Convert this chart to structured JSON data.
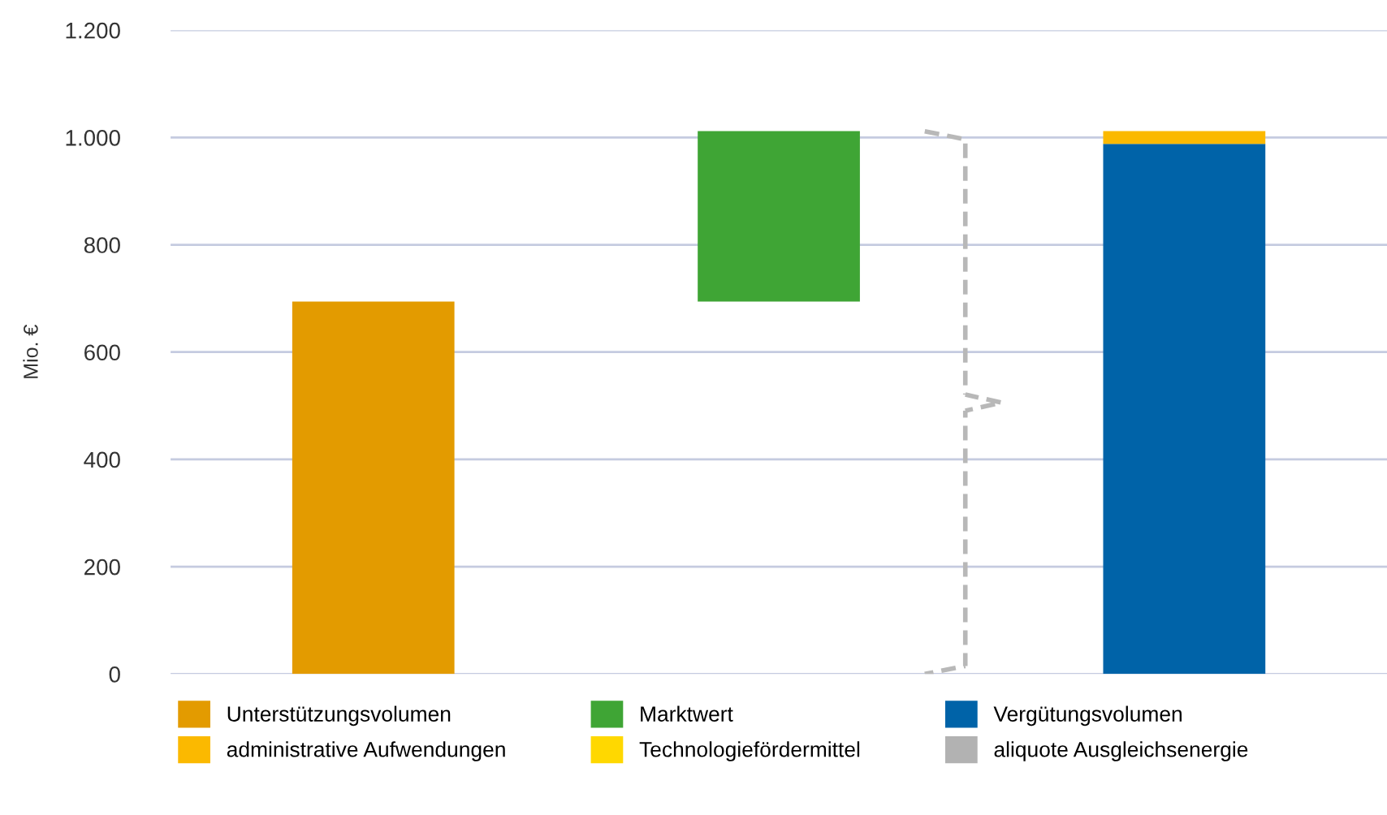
{
  "chart_data": {
    "type": "bar",
    "ylabel": "Mio. €",
    "categories": [
      null,
      null,
      null
    ],
    "stacked": true,
    "series": [
      {
        "name": "Unterstützungsvolumen",
        "color": "#e39b00",
        "values": [
          694,
          null,
          null
        ]
      },
      {
        "name": "Marktwert",
        "color": "#3fa535",
        "values": [
          null,
          318,
          null
        ],
        "base": [
          null,
          694,
          null
        ]
      },
      {
        "name": "Vergütungsvolumen",
        "color": "#0063a8",
        "values": [
          null,
          null,
          988
        ]
      },
      {
        "name": "administrative Aufwendungen",
        "color": "#fbb900",
        "values": [
          null,
          null,
          24
        ]
      },
      {
        "name": "Technologiefördermittel",
        "color": "#ffd800",
        "values": [
          null,
          null,
          null
        ]
      },
      {
        "name": "aliquote Ausgleichsenergie",
        "color": "#b2b2b2",
        "values": [
          null,
          null,
          null
        ]
      }
    ],
    "ylim": [
      0,
      1200
    ],
    "yticks": [
      {
        "value": 0,
        "label": "0"
      },
      {
        "value": 200,
        "label": "200"
      },
      {
        "value": 400,
        "label": "400"
      },
      {
        "value": 600,
        "label": "600"
      },
      {
        "value": 800,
        "label": "800"
      },
      {
        "value": 1000,
        "label": "1.000"
      },
      {
        "value": 1200,
        "label": "1.200"
      }
    ],
    "grid": "y",
    "legend": "bottom",
    "tick_labels": "y"
  }
}
